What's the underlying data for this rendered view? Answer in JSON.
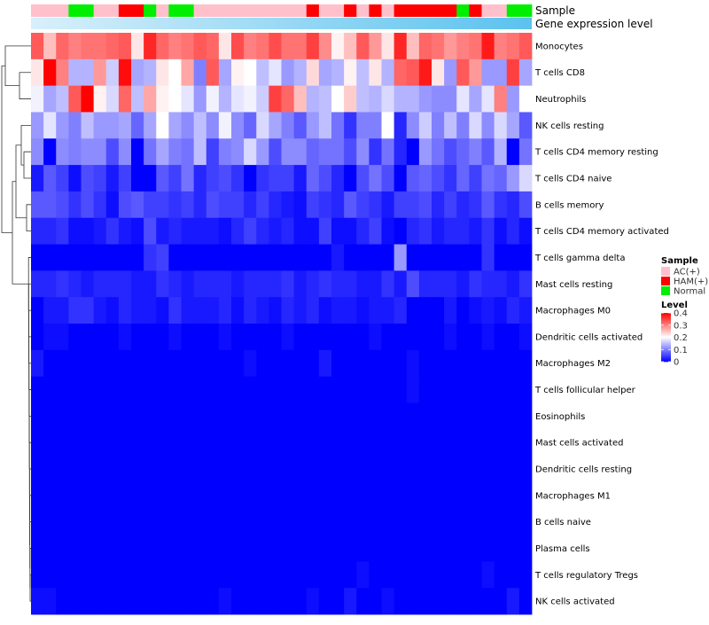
{
  "chart_data": {
    "type": "heatmap",
    "annotation_labels": [
      "Sample",
      "Gene expression level"
    ],
    "rows": [
      "Monocytes",
      "T cells CD8",
      "Neutrophils",
      "NK cells resting",
      "T cells CD4 memory resting",
      "T cells CD4 naive",
      "B cells memory",
      "T cells CD4 memory activated",
      "T cells gamma delta",
      "Mast cells resting",
      "Macrophages M0",
      "Dendritic cells activated",
      "Macrophages M2",
      "T cells follicular helper",
      "Eosinophils",
      "Mast cells activated",
      "Dendritic cells resting",
      "Macrophages M1",
      "B cells naive",
      "Plasma cells",
      "T cells regulatory  Tregs",
      "NK cells activated"
    ],
    "sample_groups": [
      0,
      0,
      0,
      2,
      2,
      0,
      0,
      1,
      1,
      2,
      0,
      2,
      2,
      0,
      0,
      0,
      0,
      0,
      0,
      0,
      0,
      0,
      1,
      0,
      0,
      1,
      0,
      1,
      0,
      1,
      1,
      1,
      1,
      1,
      2,
      1,
      0,
      0,
      2,
      2
    ],
    "values": [
      [
        0.33,
        0.25,
        0.32,
        0.3,
        0.31,
        0.31,
        0.32,
        0.33,
        0.22,
        0.37,
        0.32,
        0.3,
        0.31,
        0.33,
        0.32,
        0.22,
        0.34,
        0.3,
        0.31,
        0.34,
        0.31,
        0.31,
        0.35,
        0.29,
        0.21,
        0.25,
        0.33,
        0.28,
        0.22,
        0.37,
        0.25,
        0.32,
        0.31,
        0.28,
        0.3,
        0.31,
        0.38,
        0.3,
        0.31,
        0.33
      ],
      [
        0.22,
        0.4,
        0.3,
        0.14,
        0.14,
        0.28,
        0.16,
        0.39,
        0.13,
        0.14,
        0.22,
        0.2,
        0.27,
        0.1,
        0.33,
        0.13,
        0.21,
        0.2,
        0.15,
        0.18,
        0.12,
        0.14,
        0.23,
        0.13,
        0.14,
        0.21,
        0.15,
        0.22,
        0.14,
        0.32,
        0.33,
        0.38,
        0.22,
        0.12,
        0.33,
        0.28,
        0.12,
        0.12,
        0.35,
        0.13
      ],
      [
        0.19,
        0.13,
        0.15,
        0.33,
        0.4,
        0.21,
        0.17,
        0.32,
        0.15,
        0.27,
        0.21,
        0.2,
        0.18,
        0.12,
        0.19,
        0.14,
        0.18,
        0.19,
        0.16,
        0.35,
        0.32,
        0.25,
        0.14,
        0.15,
        0.2,
        0.24,
        0.15,
        0.14,
        0.17,
        0.14,
        0.14,
        0.12,
        0.11,
        0.11,
        0.18,
        0.13,
        0.18,
        0.3,
        0.12,
        0.2
      ],
      [
        0.12,
        0.18,
        0.12,
        0.1,
        0.15,
        0.12,
        0.12,
        0.13,
        0.08,
        0.13,
        0.2,
        0.13,
        0.11,
        0.15,
        0.11,
        0.19,
        0.11,
        0.08,
        0.17,
        0.13,
        0.1,
        0.07,
        0.12,
        0.15,
        0.09,
        0.04,
        0.1,
        0.1,
        0.2,
        0.03,
        0.11,
        0.16,
        0.1,
        0.15,
        0.1,
        0.17,
        0.11,
        0.17,
        0.13,
        0.07
      ],
      [
        0.11,
        0.0,
        0.11,
        0.1,
        0.11,
        0.11,
        0.06,
        0.11,
        0.0,
        0.09,
        0.13,
        0.1,
        0.09,
        0.15,
        0.05,
        0.1,
        0.11,
        0.17,
        0.12,
        0.06,
        0.11,
        0.11,
        0.08,
        0.09,
        0.09,
        0.06,
        0.11,
        0.04,
        0.09,
        0.03,
        0.0,
        0.12,
        0.09,
        0.06,
        0.08,
        0.1,
        0.07,
        0.14,
        0.0,
        0.09
      ],
      [
        0.02,
        0.07,
        0.05,
        0.01,
        0.06,
        0.05,
        0.02,
        0.05,
        0.0,
        0.0,
        0.07,
        0.05,
        0.09,
        0.03,
        0.05,
        0.06,
        0.04,
        0.0,
        0.04,
        0.05,
        0.05,
        0.02,
        0.08,
        0.06,
        0.03,
        0.0,
        0.06,
        0.09,
        0.06,
        0.0,
        0.07,
        0.08,
        0.06,
        0.04,
        0.08,
        0.05,
        0.09,
        0.08,
        0.12,
        0.17
      ],
      [
        0.07,
        0.07,
        0.06,
        0.04,
        0.06,
        0.04,
        0.01,
        0.06,
        0.07,
        0.05,
        0.05,
        0.04,
        0.05,
        0.03,
        0.06,
        0.05,
        0.05,
        0.03,
        0.05,
        0.03,
        0.02,
        0.01,
        0.05,
        0.04,
        0.03,
        0.07,
        0.05,
        0.04,
        0.02,
        0.05,
        0.05,
        0.06,
        0.03,
        0.05,
        0.03,
        0.04,
        0.07,
        0.04,
        0.03,
        0.06
      ],
      [
        0.03,
        0.03,
        0.04,
        0.01,
        0.01,
        0.02,
        0.04,
        0.02,
        0.01,
        0.06,
        0.02,
        0.03,
        0.02,
        0.02,
        0.02,
        0.01,
        0.03,
        0.05,
        0.03,
        0.02,
        0.03,
        0.01,
        0.01,
        0.05,
        0.01,
        0.01,
        0.03,
        0.05,
        0.01,
        0.0,
        0.03,
        0.04,
        0.02,
        0.03,
        0.03,
        0.02,
        0.04,
        0.01,
        0.03,
        0.01
      ],
      [
        0.0,
        0.0,
        0.0,
        0.0,
        0.0,
        0.0,
        0.0,
        0.0,
        0.0,
        0.04,
        0.05,
        0.0,
        0.0,
        0.0,
        0.0,
        0.0,
        0.0,
        0.0,
        0.0,
        0.0,
        0.0,
        0.0,
        0.0,
        0.0,
        0.02,
        0.0,
        0.0,
        0.0,
        0.0,
        0.12,
        0.0,
        0.0,
        0.0,
        0.0,
        0.0,
        0.0,
        0.04,
        0.0,
        0.0,
        0.0
      ],
      [
        0.03,
        0.03,
        0.04,
        0.03,
        0.02,
        0.03,
        0.03,
        0.03,
        0.02,
        0.02,
        0.04,
        0.03,
        0.02,
        0.03,
        0.03,
        0.03,
        0.02,
        0.03,
        0.03,
        0.03,
        0.04,
        0.02,
        0.03,
        0.04,
        0.03,
        0.03,
        0.02,
        0.02,
        0.04,
        0.02,
        0.06,
        0.03,
        0.03,
        0.03,
        0.02,
        0.04,
        0.03,
        0.03,
        0.02,
        0.04
      ],
      [
        0.0,
        0.02,
        0.02,
        0.04,
        0.04,
        0.02,
        0.01,
        0.03,
        0.02,
        0.02,
        0.01,
        0.04,
        0.02,
        0.02,
        0.02,
        0.03,
        0.01,
        0.03,
        0.02,
        0.01,
        0.03,
        0.02,
        0.03,
        0.01,
        0.02,
        0.02,
        0.01,
        0.02,
        0.02,
        0.03,
        0.0,
        0.0,
        0.0,
        0.02,
        0.0,
        0.01,
        0.02,
        0.01,
        0.03,
        0.02
      ],
      [
        0.0,
        0.01,
        0.01,
        0.0,
        0.0,
        0.0,
        0.0,
        0.01,
        0.0,
        0.0,
        0.0,
        0.01,
        0.0,
        0.0,
        0.0,
        0.01,
        0.0,
        0.0,
        0.0,
        0.0,
        0.01,
        0.0,
        0.0,
        0.0,
        0.0,
        0.0,
        0.0,
        0.01,
        0.0,
        0.0,
        0.0,
        0.0,
        0.0,
        0.01,
        0.0,
        0.0,
        0.01,
        0.0,
        0.0,
        0.01
      ],
      [
        0.02,
        0.0,
        0.0,
        0.0,
        0.0,
        0.0,
        0.0,
        0.0,
        0.0,
        0.0,
        0.0,
        0.0,
        0.0,
        0.0,
        0.0,
        0.0,
        0.0,
        0.01,
        0.0,
        0.0,
        0.0,
        0.0,
        0.0,
        0.02,
        0.0,
        0.0,
        0.0,
        0.0,
        0.0,
        0.0,
        0.01,
        0.0,
        0.0,
        0.0,
        0.0,
        0.0,
        0.0,
        0.0,
        0.0,
        0.0
      ],
      [
        0.0,
        0.0,
        0.0,
        0.0,
        0.0,
        0.0,
        0.0,
        0.0,
        0.0,
        0.0,
        0.0,
        0.0,
        0.0,
        0.0,
        0.0,
        0.0,
        0.0,
        0.0,
        0.0,
        0.0,
        0.0,
        0.0,
        0.0,
        0.0,
        0.0,
        0.0,
        0.0,
        0.0,
        0.0,
        0.0,
        0.01,
        0.0,
        0.0,
        0.0,
        0.0,
        0.0,
        0.0,
        0.0,
        0.0,
        0.0
      ],
      [
        0.0,
        0.0,
        0.0,
        0.0,
        0.0,
        0.0,
        0.0,
        0.0,
        0.0,
        0.0,
        0.0,
        0.0,
        0.0,
        0.0,
        0.0,
        0.0,
        0.0,
        0.0,
        0.0,
        0.0,
        0.0,
        0.0,
        0.0,
        0.0,
        0.0,
        0.0,
        0.0,
        0.0,
        0.0,
        0.0,
        0.0,
        0.0,
        0.0,
        0.0,
        0.0,
        0.0,
        0.0,
        0.0,
        0.0,
        0.0
      ],
      [
        0.0,
        0.0,
        0.0,
        0.0,
        0.0,
        0.0,
        0.0,
        0.0,
        0.0,
        0.0,
        0.0,
        0.0,
        0.0,
        0.0,
        0.0,
        0.0,
        0.0,
        0.0,
        0.0,
        0.0,
        0.0,
        0.0,
        0.0,
        0.0,
        0.0,
        0.0,
        0.0,
        0.0,
        0.0,
        0.0,
        0.0,
        0.0,
        0.0,
        0.0,
        0.0,
        0.0,
        0.0,
        0.0,
        0.0,
        0.0
      ],
      [
        0.0,
        0.0,
        0.0,
        0.0,
        0.0,
        0.0,
        0.0,
        0.0,
        0.0,
        0.0,
        0.0,
        0.0,
        0.0,
        0.0,
        0.0,
        0.0,
        0.0,
        0.0,
        0.0,
        0.0,
        0.0,
        0.0,
        0.0,
        0.0,
        0.0,
        0.0,
        0.0,
        0.0,
        0.0,
        0.0,
        0.0,
        0.0,
        0.0,
        0.0,
        0.0,
        0.0,
        0.0,
        0.0,
        0.0,
        0.0
      ],
      [
        0.0,
        0.0,
        0.0,
        0.0,
        0.0,
        0.0,
        0.0,
        0.0,
        0.0,
        0.0,
        0.0,
        0.0,
        0.0,
        0.0,
        0.0,
        0.0,
        0.0,
        0.0,
        0.0,
        0.0,
        0.0,
        0.0,
        0.0,
        0.0,
        0.0,
        0.0,
        0.0,
        0.0,
        0.0,
        0.0,
        0.0,
        0.0,
        0.0,
        0.0,
        0.0,
        0.0,
        0.0,
        0.0,
        0.0,
        0.0
      ],
      [
        0.0,
        0.0,
        0.0,
        0.0,
        0.0,
        0.0,
        0.0,
        0.0,
        0.0,
        0.0,
        0.0,
        0.0,
        0.0,
        0.0,
        0.0,
        0.0,
        0.0,
        0.0,
        0.0,
        0.0,
        0.0,
        0.0,
        0.0,
        0.0,
        0.0,
        0.0,
        0.0,
        0.0,
        0.0,
        0.0,
        0.0,
        0.0,
        0.0,
        0.0,
        0.0,
        0.0,
        0.0,
        0.0,
        0.0,
        0.0
      ],
      [
        0.0,
        0.0,
        0.0,
        0.0,
        0.0,
        0.0,
        0.0,
        0.0,
        0.0,
        0.0,
        0.0,
        0.0,
        0.0,
        0.0,
        0.0,
        0.0,
        0.0,
        0.0,
        0.0,
        0.0,
        0.0,
        0.0,
        0.0,
        0.0,
        0.0,
        0.0,
        0.0,
        0.0,
        0.0,
        0.0,
        0.0,
        0.0,
        0.0,
        0.0,
        0.0,
        0.0,
        0.0,
        0.0,
        0.0,
        0.0
      ],
      [
        0.0,
        0.0,
        0.0,
        0.0,
        0.0,
        0.0,
        0.0,
        0.0,
        0.0,
        0.0,
        0.0,
        0.0,
        0.0,
        0.0,
        0.0,
        0.0,
        0.0,
        0.0,
        0.0,
        0.0,
        0.0,
        0.0,
        0.0,
        0.0,
        0.0,
        0.0,
        0.01,
        0.0,
        0.0,
        0.0,
        0.0,
        0.0,
        0.0,
        0.0,
        0.0,
        0.0,
        0.01,
        0.0,
        0.0,
        0.0
      ],
      [
        0.01,
        0.01,
        0.0,
        0.0,
        0.0,
        0.0,
        0.0,
        0.0,
        0.0,
        0.0,
        0.0,
        0.0,
        0.0,
        0.0,
        0.0,
        0.01,
        0.0,
        0.0,
        0.0,
        0.0,
        0.0,
        0.0,
        0.01,
        0.0,
        0.0,
        0.02,
        0.0,
        0.0,
        0.01,
        0.0,
        0.0,
        0.0,
        0.0,
        0.0,
        0.0,
        0.0,
        0.0,
        0.0,
        0.02,
        0.0
      ]
    ],
    "scale": {
      "min": 0,
      "max": 0.4,
      "colors": [
        "#0000ff",
        "#ffffff",
        "#ff0000"
      ]
    },
    "legend": {
      "sample_title": "Sample",
      "sample_entries": [
        {
          "label": "AC(+)",
          "color": "#ffc0cb"
        },
        {
          "label": "HAM(+)",
          "color": "#ff0000"
        },
        {
          "label": "Normal",
          "color": "#00ee00"
        }
      ],
      "level_title": "Level",
      "level_ticks": [
        {
          "value": 0.4,
          "label": "0.4"
        },
        {
          "value": 0.3,
          "label": "0.3"
        },
        {
          "value": 0.2,
          "label": "0.2"
        },
        {
          "value": 0.1,
          "label": "0.1"
        },
        {
          "value": 0,
          "label": "0"
        }
      ],
      "placement": "right"
    },
    "gene_expression_gradient": [
      "#d8f0fb",
      "#5bc2ee"
    ]
  }
}
